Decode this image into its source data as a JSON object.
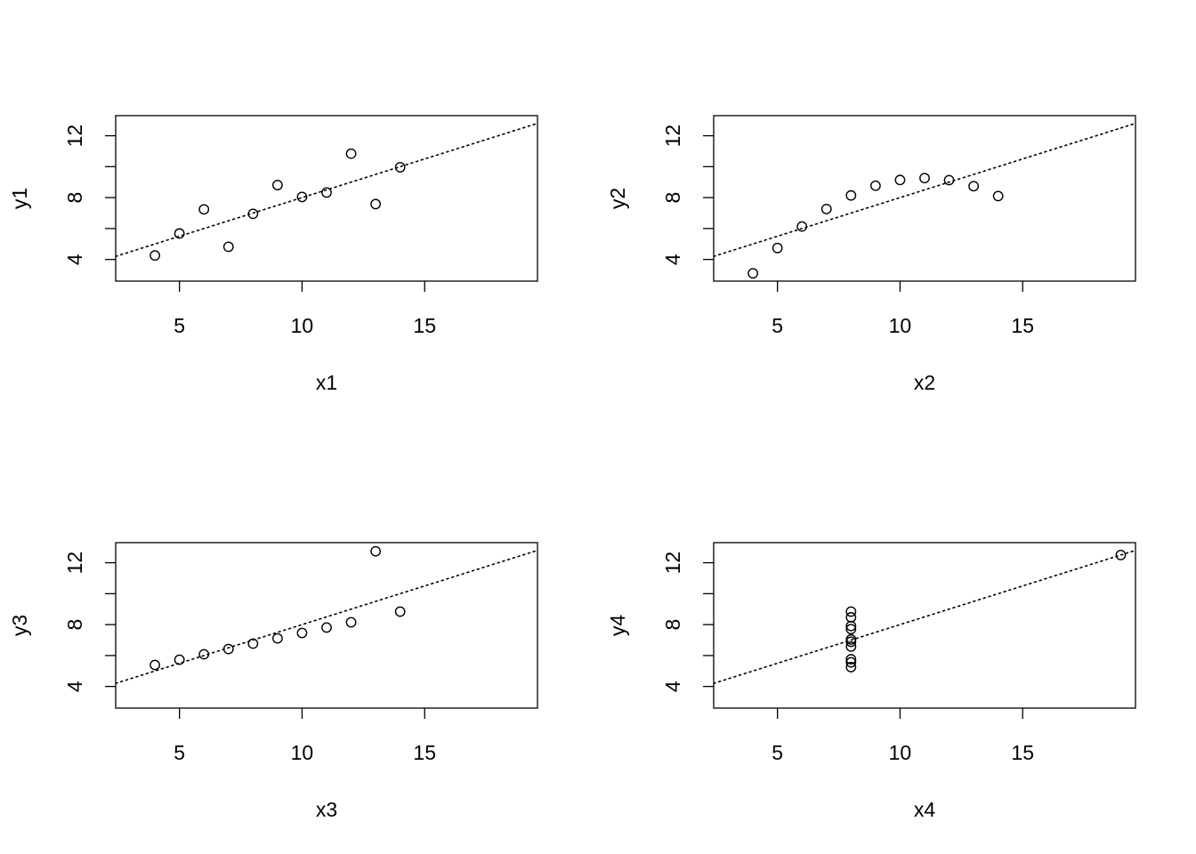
{
  "chart_data": [
    {
      "type": "scatter",
      "xlabel": "x1",
      "ylabel": "y1",
      "xlim": [
        2.4,
        19.6
      ],
      "ylim": [
        2.6,
        13.3
      ],
      "xticks": [
        5,
        10,
        15
      ],
      "yticks": [
        4,
        8,
        12
      ],
      "ytick_minor": [
        4,
        6,
        8,
        10,
        12
      ],
      "x": [
        10,
        8,
        13,
        9,
        11,
        14,
        6,
        4,
        12,
        7,
        5
      ],
      "y": [
        8.04,
        6.95,
        7.58,
        8.81,
        8.33,
        9.96,
        7.24,
        4.26,
        10.84,
        4.82,
        5.68
      ],
      "fit": {
        "intercept": 3.0,
        "slope": 0.5
      }
    },
    {
      "type": "scatter",
      "xlabel": "x2",
      "ylabel": "y2",
      "xlim": [
        2.4,
        19.6
      ],
      "ylim": [
        2.6,
        13.3
      ],
      "xticks": [
        5,
        10,
        15
      ],
      "yticks": [
        4,
        8,
        12
      ],
      "ytick_minor": [
        4,
        6,
        8,
        10,
        12
      ],
      "x": [
        10,
        8,
        13,
        9,
        11,
        14,
        6,
        4,
        12,
        7,
        5
      ],
      "y": [
        9.14,
        8.14,
        8.74,
        8.77,
        9.26,
        8.1,
        6.13,
        3.1,
        9.13,
        7.26,
        4.74
      ],
      "fit": {
        "intercept": 3.0,
        "slope": 0.5
      }
    },
    {
      "type": "scatter",
      "xlabel": "x3",
      "ylabel": "y3",
      "xlim": [
        2.4,
        19.6
      ],
      "ylim": [
        2.6,
        13.3
      ],
      "xticks": [
        5,
        10,
        15
      ],
      "yticks": [
        4,
        8,
        12
      ],
      "ytick_minor": [
        4,
        6,
        8,
        10,
        12
      ],
      "x": [
        10,
        8,
        13,
        9,
        11,
        14,
        6,
        4,
        12,
        7,
        5
      ],
      "y": [
        7.46,
        6.77,
        12.74,
        7.11,
        7.81,
        8.84,
        6.08,
        5.39,
        8.15,
        6.42,
        5.73
      ],
      "fit": {
        "intercept": 3.0,
        "slope": 0.5
      }
    },
    {
      "type": "scatter",
      "xlabel": "x4",
      "ylabel": "y4",
      "xlim": [
        2.4,
        19.6
      ],
      "ylim": [
        2.6,
        13.3
      ],
      "xticks": [
        5,
        10,
        15
      ],
      "yticks": [
        4,
        8,
        12
      ],
      "ytick_minor": [
        4,
        6,
        8,
        10,
        12
      ],
      "x": [
        8,
        8,
        8,
        8,
        8,
        8,
        8,
        19,
        8,
        8,
        8
      ],
      "y": [
        6.58,
        5.76,
        7.71,
        8.84,
        8.47,
        7.04,
        5.25,
        12.5,
        5.56,
        7.91,
        6.89
      ],
      "fit": {
        "intercept": 3.0,
        "slope": 0.5
      }
    }
  ]
}
